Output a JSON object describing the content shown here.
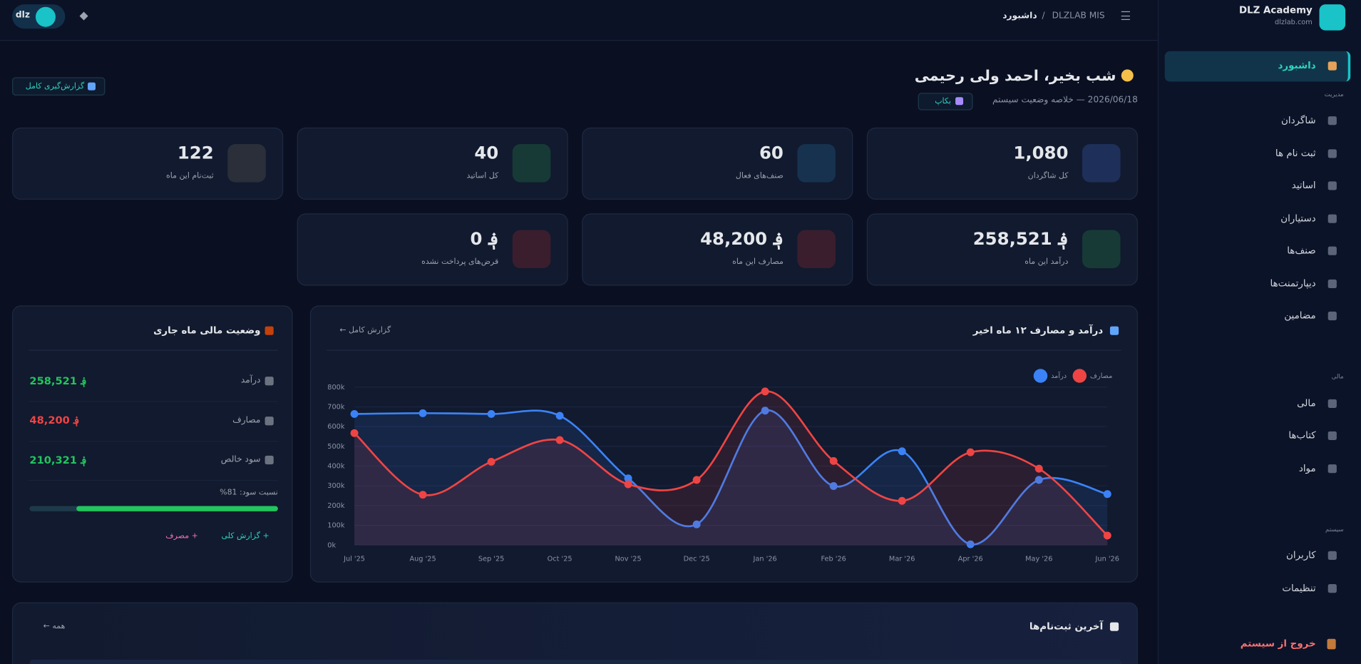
{
  "header": {
    "brand": "DLZ Academy",
    "domain": "dlzlab.com",
    "breadcrumb": [
      "DLZLAB MIS",
      "/",
      "داشبورد"
    ],
    "user": "dlz"
  },
  "sidebar": {
    "groups": [
      {
        "items": [
          "داشبورد"
        ]
      },
      {
        "heading": "مدیریت",
        "items": [
          "شاگردان",
          "ثبت نام ها",
          "اساتید",
          "دستیاران",
          "صنف‌ها",
          "دیپارتمنت‌ها",
          "مضامین"
        ]
      },
      {
        "heading": "مالی",
        "items": [
          "مالی",
          "کتاب‌ها",
          "مواد"
        ]
      },
      {
        "heading": "سیستم",
        "items": [
          "کاربران",
          "تنظیمات"
        ]
      }
    ],
    "logout": "خروج از سیستم"
  },
  "greeting": {
    "title": "شب بخیر، احمد ولی رحیمی",
    "subtitle": "2026/06/18 — خلاصه وضعیت سیستم",
    "backup": "بکاپ",
    "full_report": "گزارش‌گیری کامل"
  },
  "stats": [
    {
      "value": "1,080",
      "label": "کل شاگردان",
      "icon_color": "#1e2f5a"
    },
    {
      "value": "60",
      "label": "صنف‌های فعال",
      "icon_color": "#17324f"
    },
    {
      "value": "40",
      "label": "کل اساتید",
      "icon_color": "#173a36"
    },
    {
      "value": "122",
      "label": "ثبت‌نام این ماه",
      "icon_color": "#2a2f3a"
    },
    {
      "value": "258,521 ؋",
      "label": "درآمد این ماه",
      "icon_color": "#173a36"
    },
    {
      "value": "48,200 ؋",
      "label": "مصارف این ماه",
      "icon_color": "#3a1e2e"
    },
    {
      "value": "0 ؋",
      "label": "قرض‌های پرداخت نشده",
      "icon_color": "#3a1e2e"
    }
  ],
  "finance": {
    "title": "وضعیت مالی ماه جاری",
    "rows": [
      {
        "label": "درآمد",
        "value": "258,521 ؋",
        "color": "#22c55e"
      },
      {
        "label": "مصارف",
        "value": "48,200 ؋",
        "color": "#ef4444"
      },
      {
        "label": "سود خالص",
        "value": "210,321 ؋",
        "color": "#22c55e"
      }
    ],
    "ratio": {
      "label": "نسبت سود: 81%",
      "value": 81,
      "color": "#22c55e"
    },
    "links": [
      "+ گزارش کلی",
      "+ مصرف"
    ]
  },
  "chart_data": {
    "type": "line",
    "title": "درآمد و مصارف ۱۲ ماه اخیر",
    "link": "گزارش کامل ←",
    "categories": [
      "Jul '25",
      "Aug '25",
      "Sep '25",
      "Oct '25",
      "Nov '25",
      "Dec '25",
      "Jan '26",
      "Feb '26",
      "Mar '26",
      "Apr '26",
      "May '26",
      "Jun '26"
    ],
    "series": [
      {
        "name": "درآمد",
        "color": "#3b82f6",
        "values": [
          664000,
          668000,
          664000,
          655000,
          338000,
          105000,
          681000,
          299000,
          475000,
          4000,
          330000,
          258521
        ]
      },
      {
        "name": "مصارف",
        "color": "#ef4444",
        "values": [
          567000,
          255000,
          422000,
          532000,
          308000,
          330000,
          778000,
          426000,
          224000,
          470000,
          387000,
          48200
        ]
      }
    ],
    "ylim": [
      0,
      800000
    ],
    "yticks": [
      {
        "value": 0,
        "label": "0k"
      },
      {
        "value": 100000,
        "label": "100k"
      },
      {
        "value": 200000,
        "label": "200k"
      },
      {
        "value": 300000,
        "label": "300k"
      },
      {
        "value": 400000,
        "label": "400k"
      },
      {
        "value": 500000,
        "label": "500k"
      },
      {
        "value": 600000,
        "label": "600k"
      },
      {
        "value": 700000,
        "label": "700k"
      },
      {
        "value": 800000,
        "label": "800k"
      }
    ],
    "grid": true
  },
  "recent": {
    "title": "آخرین ثبت‌نام‌ها",
    "link": "همه ←"
  }
}
